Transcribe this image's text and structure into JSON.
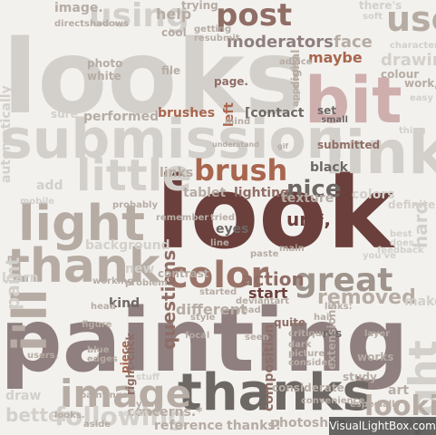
{
  "word_cloud": {
    "palette": {
      "background": "#f3f1ee",
      "light_grey": "#d3d0cb",
      "warm_grey": "#b6aca4",
      "mauve": "#8f7f7f",
      "rose": "#cfaeae",
      "dark_brown": "#6b3f3b",
      "terracotta": "#a8664e",
      "taupe": "#9e948b"
    },
    "words": [
      {
        "text": "looks",
        "color": "#d3d0cb",
        "rotated": false
      },
      {
        "text": "painting",
        "color": "#8f7f7f",
        "rotated": false
      },
      {
        "text": "look",
        "color": "#6b3f3b",
        "rotated": false
      },
      {
        "text": "submission",
        "color": "#d3d0cb",
        "rotated": false
      },
      {
        "text": "bit",
        "color": "#cfaeae",
        "rotated": false
      },
      {
        "text": "thanks",
        "color": "#6e6864",
        "rotated": false
      },
      {
        "text": "link",
        "color": "#d3d0cb",
        "rotated": false
      },
      {
        "text": "image",
        "color": "#b6aca4",
        "rotated": false
      },
      {
        "text": "light",
        "color": "#b6aca4",
        "rotated": false
      },
      {
        "text": "thank",
        "color": "#b6aca4",
        "rotated": false
      },
      {
        "text": "little",
        "color": "#d3d0cb",
        "rotated": false
      },
      {
        "text": "post",
        "color": "#8f6e66",
        "rotated": false
      },
      {
        "text": "brush",
        "color": "#a8664e",
        "rotated": false
      },
      {
        "text": "great",
        "color": "#9e948b",
        "rotated": false
      },
      {
        "text": "color",
        "color": "#9a7468",
        "rotated": false
      },
      {
        "text": "used",
        "color": "#b6aca4",
        "rotated": false
      },
      {
        "text": "using",
        "color": "#d3d0cb",
        "rotated": false
      },
      {
        "text": "right",
        "color": "#d3d0cb",
        "rotated": true
      },
      {
        "text": "i'll",
        "color": "#b6aca4",
        "rotated": true
      },
      {
        "text": "looking",
        "color": "#b6aca4",
        "rotated": false
      },
      {
        "text": "following",
        "color": "#d3d0cb",
        "rotated": false
      },
      {
        "text": "moderators",
        "color": "#8f7f7f",
        "rotated": false
      },
      {
        "text": "nice",
        "color": "#6e6864",
        "rotated": false
      },
      {
        "text": "questions",
        "color": "#8f6e66",
        "rotated": true
      },
      {
        "text": "removed",
        "color": "#b6aca4",
        "rotated": false
      },
      {
        "text": "action",
        "color": "#8f6e66",
        "rotated": false
      },
      {
        "text": "brushes",
        "color": "#a8664e",
        "rotated": false
      },
      {
        "text": "[contact",
        "color": "#6e6864",
        "rotated": false
      },
      {
        "text": "url*,",
        "color": "#6b3f3b",
        "rotated": false
      },
      {
        "text": "drawing",
        "color": "#d3d0cb",
        "rotated": false
      },
      {
        "text": "automatically",
        "color": "#d3d0cb",
        "rotated": true
      },
      {
        "text": "better",
        "color": "#d3d0cb",
        "rotated": false
      },
      {
        "text": "concerns.*",
        "color": "#b6aca4",
        "rotated": false
      },
      {
        "text": "reference",
        "color": "#b6aca4",
        "rotated": false
      },
      {
        "text": "thanks!",
        "color": "#b6aca4",
        "rotated": false
      },
      {
        "text": "photoshop",
        "color": "#b6aca4",
        "rotated": false
      },
      {
        "text": "different",
        "color": "#b6aca4",
        "rotated": false
      },
      {
        "text": "kind",
        "color": "#6e6864",
        "rotated": false
      },
      {
        "text": "start",
        "color": "#6b3f3b",
        "rotated": false
      },
      {
        "text": "piece",
        "color": "#a8664e",
        "rotated": true
      },
      {
        "text": "black",
        "color": "#6e6864",
        "rotated": false
      },
      {
        "text": "maybe",
        "color": "#a8664e",
        "rotated": false
      },
      {
        "text": "lighting",
        "color": "#8f6e66",
        "rotated": false
      },
      {
        "text": "texture",
        "color": "#b6aca4",
        "rotated": false
      },
      {
        "text": "tablet",
        "color": "#b6aca4",
        "rotated": false
      },
      {
        "text": "links",
        "color": "#b6aca4",
        "rotated": false
      },
      {
        "text": "eyes",
        "color": "#6e6864",
        "rotated": false
      },
      {
        "text": "face",
        "color": "#b6aca4",
        "rotated": false
      },
      {
        "text": "digital",
        "color": "#b6aca4",
        "rotated": true
      },
      {
        "text": "hard",
        "color": "#d3d0cb",
        "rotated": true
      },
      {
        "text": "colors",
        "color": "#d3d0cb",
        "rotated": false
      },
      {
        "text": "definitely",
        "color": "#d3d0cb",
        "rotated": false
      },
      {
        "text": "paint",
        "color": "#d3d0cb",
        "rotated": true
      },
      {
        "text": "submitted",
        "color": "#8f6e66",
        "rotated": false
      },
      {
        "text": "left",
        "color": "#a8664e",
        "rotated": true
      },
      {
        "text": "contrast",
        "color": "#b6aca4",
        "rotated": false
      },
      {
        "text": "composition",
        "color": "#8f6e66",
        "rotated": true
      },
      {
        "text": "art",
        "color": "#b6aca4",
        "rotated": false
      },
      {
        "text": "help",
        "color": "#b6aca4",
        "rotated": false
      },
      {
        "text": "image.",
        "color": "#b6aca4",
        "rotated": false
      },
      {
        "text": "performed",
        "color": "#b6aca4",
        "rotated": false
      },
      {
        "text": "background",
        "color": "#d3d0cb",
        "rotated": false
      },
      {
        "text": "right-click",
        "color": "#8f6e66",
        "rotated": true
      },
      {
        "text": "works",
        "color": "#b6aca4",
        "rotated": false
      },
      {
        "text": "study",
        "color": "#b6aca4",
        "rotated": false
      },
      {
        "text": "style",
        "color": "#b6aca4",
        "rotated": false
      },
      {
        "text": "focal",
        "color": "#b6aca4",
        "rotated": false
      },
      {
        "text": "quite",
        "color": "#8f6e66",
        "rotated": false
      },
      {
        "text": "critique",
        "color": "#b6aca4",
        "rotated": false
      },
      {
        "text": "dark",
        "color": "#b6aca4",
        "rotated": false
      },
      {
        "text": "picture",
        "color": "#b6aca4",
        "rotated": false
      },
      {
        "text": "consider",
        "color": "#b6aca4",
        "rotated": false
      },
      {
        "text": "considerate",
        "color": "#b6aca4",
        "rotated": false
      },
      {
        "text": "layer",
        "color": "#b6aca4",
        "rotated": false
      },
      {
        "text": "hair",
        "color": "#b6aca4",
        "rotated": false
      },
      {
        "text": "res",
        "color": "#6e6864",
        "rotated": false
      },
      {
        "text": "stuff",
        "color": "#d3d0cb",
        "rotated": false
      },
      {
        "text": "select",
        "color": "#d3d0cb",
        "rotated": false
      },
      {
        "text": "blue",
        "color": "#b6aca4",
        "rotated": false
      },
      {
        "text": "draw",
        "color": "#d3d0cb",
        "rotated": false
      },
      {
        "text": "makes",
        "color": "#d3d0cb",
        "rotated": false
      },
      {
        "text": "sure",
        "color": "#d3d0cb",
        "rotated": false
      },
      {
        "text": "tried",
        "color": "#b6aca4",
        "rotated": false
      },
      {
        "text": "line",
        "color": "#b6aca4",
        "rotated": false
      },
      {
        "text": "paste",
        "color": "#b6aca4",
        "rotated": false
      },
      {
        "text": "problem",
        "color": "#b6aca4",
        "rotated": false
      },
      {
        "text": "started",
        "color": "#b6aca4",
        "rotated": false
      },
      {
        "text": "deviantart",
        "color": "#b6aca4",
        "rotated": false
      },
      {
        "text": "set",
        "color": "#6e6864",
        "rotated": false
      },
      {
        "text": "small",
        "color": "#6e6864",
        "rotated": false
      },
      {
        "text": "colour",
        "color": "#b6aca4",
        "rotated": false
      },
      {
        "text": "work,",
        "color": "#b6aca4",
        "rotated": false
      },
      {
        "text": "character",
        "color": "#d3d0cb",
        "rotated": false
      },
      {
        "text": "there's",
        "color": "#d3d0cb",
        "rotated": false
      },
      {
        "text": "trying",
        "color": "#b6aca4",
        "rotated": false
      },
      {
        "text": "cool",
        "color": "#b6aca4",
        "rotated": false
      },
      {
        "text": "file",
        "color": "#b6aca4",
        "rotated": false
      },
      {
        "text": "photo",
        "color": "#b6aca4",
        "rotated": false
      },
      {
        "text": "white",
        "color": "#b6aca4",
        "rotated": false
      },
      {
        "text": "mind",
        "color": "#b6aca4",
        "rotated": false
      },
      {
        "text": "page.",
        "color": "#8f6e66",
        "rotated": false
      },
      {
        "text": "advice",
        "color": "#b6aca4",
        "rotated": false
      },
      {
        "text": "getting",
        "color": "#b6aca4",
        "rotated": false
      },
      {
        "text": "resubmit",
        "color": "#b6aca4",
        "rotated": false
      },
      {
        "text": "mobile",
        "color": "#d3d0cb",
        "rotated": false
      },
      {
        "text": "probably",
        "color": "#b6aca4",
        "rotated": false
      },
      {
        "text": "remember",
        "color": "#b6aca4",
        "rotated": false
      },
      {
        "text": "add",
        "color": "#d3d0cb",
        "rotated": false
      },
      {
        "text": "learn",
        "color": "#d3d0cb",
        "rotated": false
      },
      {
        "text": "working",
        "color": "#b6aca4",
        "rotated": false
      },
      {
        "text": "head",
        "color": "#b6aca4",
        "rotated": false
      },
      {
        "text": "figure",
        "color": "#b6aca4",
        "rotated": false
      },
      {
        "text": "edges",
        "color": "#b6aca4",
        "rotated": false
      },
      {
        "text": "users,",
        "color": "#b6aca4",
        "rotated": false
      },
      {
        "text": "main",
        "color": "#b6aca4",
        "rotated": false
      },
      {
        "text": "best",
        "color": "#d3d0cb",
        "rotated": false
      },
      {
        "text": "does",
        "color": "#d3d0cb",
        "rotated": false
      },
      {
        "text": "new",
        "color": "#d3d0cb",
        "rotated": false
      },
      {
        "text": "links:",
        "color": "#b6aca4",
        "rotated": false
      },
      {
        "text": "extensions",
        "color": "#b6aca4",
        "rotated": true
      },
      {
        "text": "convenience,",
        "color": "#b6aca4",
        "rotated": false
      },
      {
        "text": "especially",
        "color": "#b6aca4",
        "rotated": false
      },
      {
        "text": "you've",
        "color": "#d3d0cb",
        "rotated": false
      },
      {
        "text": "feedback",
        "color": "#d3d0cb",
        "rotated": false
      },
      {
        "text": "directshadows",
        "color": "#b6aca4",
        "rotated": false
      },
      {
        "text": "appended",
        "color": "#b6aca4",
        "rotated": true
      },
      {
        "text": "understand",
        "color": "#b6aca4",
        "rotated": false
      },
      {
        "text": "gif",
        "color": "#b6aca4",
        "rotated": false
      },
      {
        "text": "yeah",
        "color": "#b6aca4",
        "rotated": false
      },
      {
        "text": "looks.",
        "color": "#b6aca4",
        "rotated": false
      },
      {
        "text": "paintings",
        "color": "#b6aca4",
        "rotated": false
      },
      {
        "text": "aside",
        "color": "#b6aca4",
        "rotated": false
      },
      {
        "text": "read",
        "color": "#b6aca4",
        "rotated": false
      },
      {
        "text": "seen",
        "color": "#b6aca4",
        "rotated": false
      },
      {
        "text": "thing",
        "color": "#d3d0cb",
        "rotated": false
      },
      {
        "text": "soft",
        "color": "#d3d0cb",
        "rotated": false
      },
      {
        "text": "easy",
        "color": "#d3d0cb",
        "rotated": false
      }
    ],
    "watermark": "VisualLightBox.com"
  }
}
